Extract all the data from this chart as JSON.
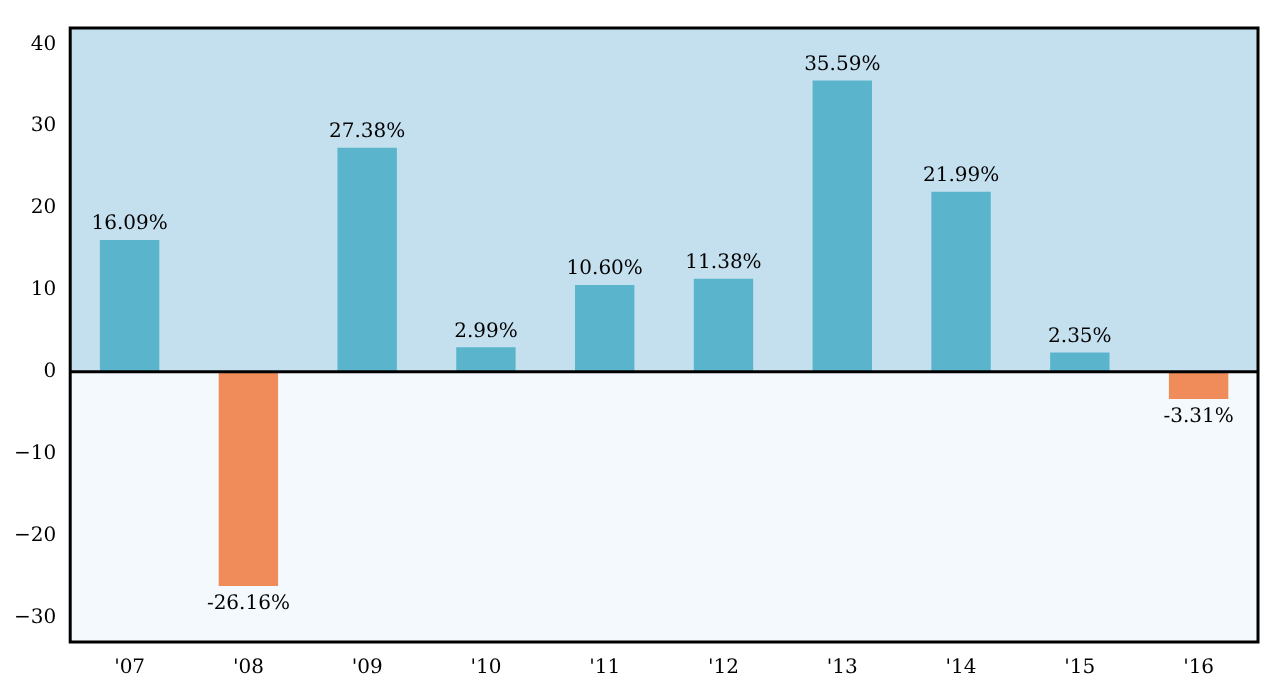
{
  "chart_data": {
    "type": "bar",
    "categories": [
      "'07",
      "'08",
      "'09",
      "'10",
      "'11",
      "'12",
      "'13",
      "'14",
      "'15",
      "'16"
    ],
    "values": [
      16.09,
      -26.16,
      27.38,
      2.99,
      10.6,
      11.38,
      35.59,
      21.99,
      2.35,
      -3.31
    ],
    "colors": [
      "#5ab4cc",
      "#ef8c5a",
      "#5ab4cc",
      "#5ab4cc",
      "#5ab4cc",
      "#5ab4cc",
      "#5ab4cc",
      "#5ab4cc",
      "#5ab4cc",
      "#ef8c5a"
    ],
    "value_labels": [
      "16.09%",
      "-26.16%",
      "27.38%",
      "2.99%",
      "10.60%",
      "11.38%",
      "35.59%",
      "21.99%",
      "2.35%",
      "-3.31%"
    ],
    "ylim": [
      -33,
      42
    ],
    "yticks": [
      -30,
      -20,
      -10,
      0,
      10,
      20,
      30,
      40
    ],
    "ref_lines": [
      {
        "axis": "y",
        "value": 0,
        "color": "#000000"
      }
    ],
    "bands": [
      {
        "axis": "y",
        "from": 0,
        "to": 42,
        "color": "#c4e0ef"
      },
      {
        "axis": "y",
        "from": -33,
        "to": 0,
        "color": "#f4f9fd"
      }
    ],
    "grid": false,
    "legend": false
  }
}
